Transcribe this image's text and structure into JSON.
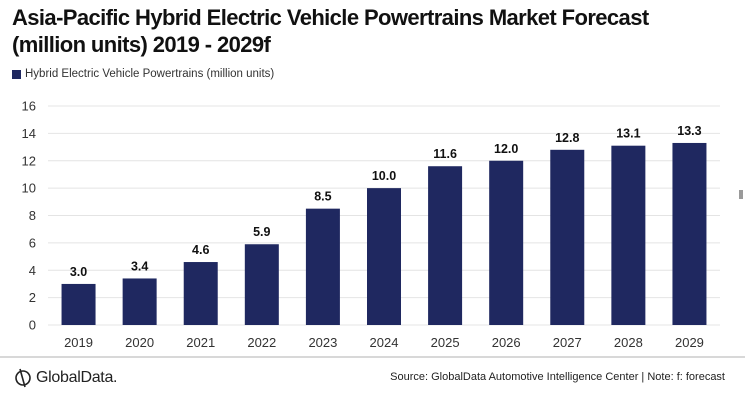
{
  "header": {
    "title_line1": "Asia-Pacific Hybrid Electric Vehicle Powertrains Market Forecast",
    "title_line2": "(million units) 2019 - 2029f"
  },
  "legend": {
    "label": "Hybrid Electric Vehicle Powertrains (million units)"
  },
  "footer": {
    "logo_text": "GlobalData.",
    "source": "Source: GlobalData Automotive Intelligence Center | Note: f: forecast"
  },
  "colors": {
    "bar": "#1f2860",
    "grid": "#e4e4e4",
    "axis_text": "#333333",
    "label_text": "#111111"
  },
  "chart_data": {
    "type": "bar",
    "title": "Asia-Pacific Hybrid Electric Vehicle Powertrains Market Forecast (million units) 2019 - 2029f",
    "xlabel": "",
    "ylabel": "",
    "categories": [
      "2019",
      "2020",
      "2021",
      "2022",
      "2023",
      "2024",
      "2025",
      "2026",
      "2027",
      "2028",
      "2029"
    ],
    "series": [
      {
        "name": "Hybrid Electric Vehicle Powertrains (million units)",
        "values": [
          3.0,
          3.4,
          4.6,
          5.9,
          8.5,
          10.0,
          11.6,
          12.0,
          12.8,
          13.1,
          13.3
        ],
        "labels": [
          "3.0",
          "3.4",
          "4.6",
          "5.9",
          "8.5",
          "10.0",
          "11.6",
          "12.0",
          "12.8",
          "13.1",
          "13.3"
        ]
      }
    ],
    "ylim": [
      0,
      16
    ],
    "yticks": [
      0,
      2,
      4,
      6,
      8,
      10,
      12,
      14,
      16
    ],
    "grid": true,
    "legend_position": "top-left",
    "data_labels": true
  }
}
